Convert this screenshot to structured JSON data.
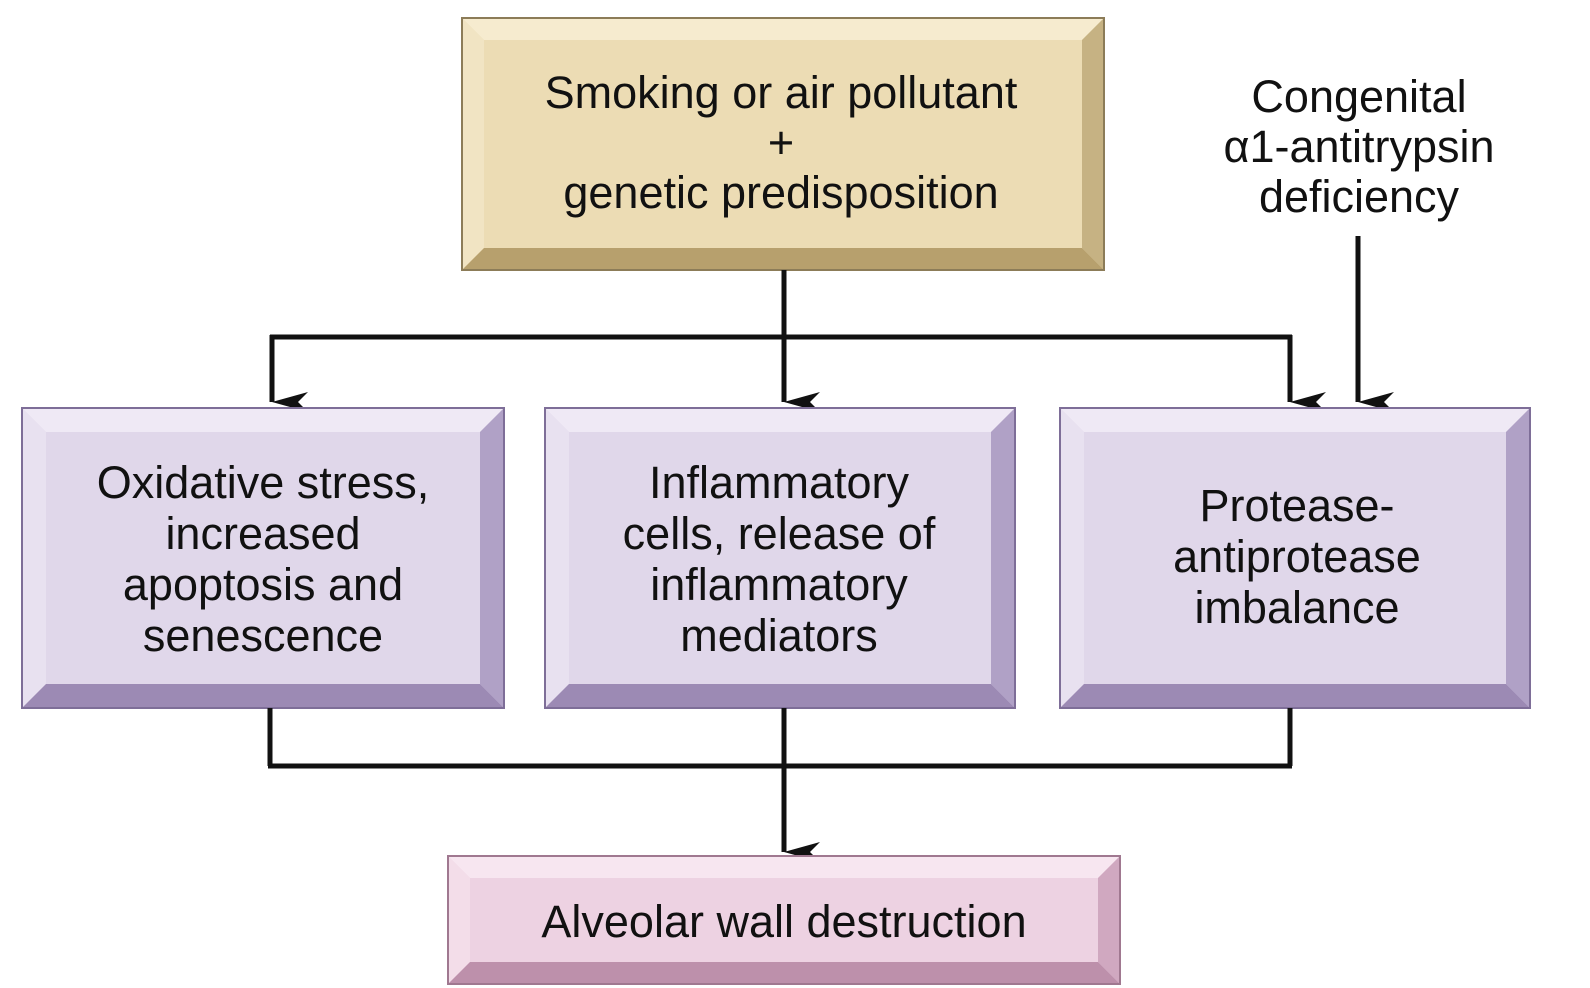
{
  "diagram": {
    "top_box": {
      "line1": "Smoking or air pollutant",
      "line2": "+",
      "line3": "genetic predisposition"
    },
    "congenital_label": {
      "line1": "Congenital",
      "line2": "α1-antitrypsin",
      "line3": "deficiency"
    },
    "oxidative_box": {
      "line1": "Oxidative stress,",
      "line2": "increased",
      "line3": "apoptosis and",
      "line4": "senescence"
    },
    "inflammatory_box": {
      "line1": "Inflammatory",
      "line2": "cells, release of",
      "line3": "inflammatory",
      "line4": "mediators"
    },
    "protease_box": {
      "line1": "Protease-",
      "line2": "antiprotease",
      "line3": "imbalance"
    },
    "bottom_box": {
      "label": "Alveolar wall destruction"
    }
  },
  "colors": {
    "tan_face": "#ecdcb4",
    "tan_light": "#f6ebcf",
    "tan_dark": "#c6b283",
    "tan_darker": "#b7a06d",
    "lavender_face": "#e0d7ea",
    "lavender_light": "#efe9f5",
    "lavender_dark": "#b0a1c6",
    "lavender_darker": "#9c8ab4",
    "pink_face": "#edd2e2",
    "pink_light": "#f7e6f0",
    "pink_dark": "#d0a8c0",
    "pink_darker": "#bd90ab",
    "line": "#111111"
  }
}
